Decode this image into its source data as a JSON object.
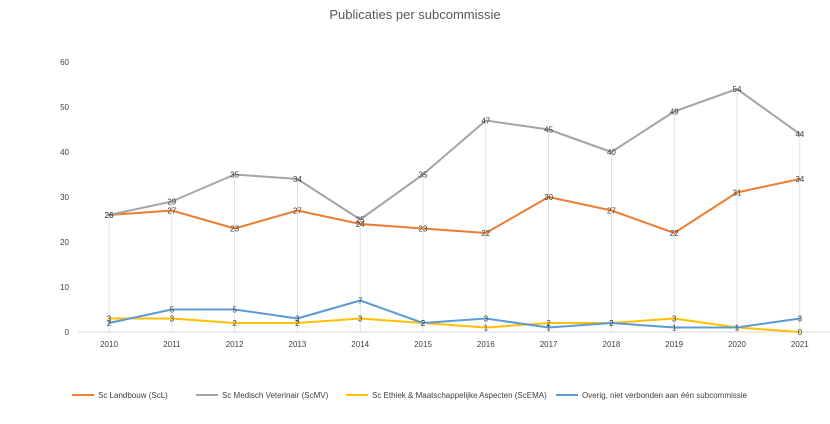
{
  "chart_data": {
    "type": "line",
    "title": "Publicaties per subcommissie",
    "x": [
      "2010",
      "2011",
      "2012",
      "2013",
      "2014",
      "2015",
      "2016",
      "2017",
      "2018",
      "2019",
      "2020",
      "2021"
    ],
    "ylim": [
      0,
      60
    ],
    "yticks": [
      0,
      10,
      20,
      30,
      40,
      50,
      60
    ],
    "drop_lines": true,
    "legend_position": "bottom",
    "series": [
      {
        "name": "Sc Landbouw (ScL)",
        "color": "#ED7D31",
        "values": [
          26,
          27,
          23,
          27,
          24,
          23,
          22,
          30,
          27,
          22,
          31,
          34
        ]
      },
      {
        "name": "Sc Medisch Veterinair (ScMV)",
        "color": "#A5A5A5",
        "values": [
          26,
          29,
          35,
          34,
          25,
          35,
          47,
          45,
          40,
          49,
          54,
          44
        ]
      },
      {
        "name": "Sc Ethiek & Maatschappelijke Aspecten (ScEMA)",
        "color": "#FFC000",
        "values": [
          3,
          3,
          2,
          2,
          3,
          2,
          1,
          2,
          2,
          3,
          1,
          0
        ]
      },
      {
        "name": "Overig, niet verbonden aan één subcommissie",
        "color": "#5B9BD5",
        "values": [
          2,
          5,
          5,
          3,
          7,
          2,
          3,
          1,
          2,
          1,
          1,
          3
        ]
      }
    ]
  }
}
